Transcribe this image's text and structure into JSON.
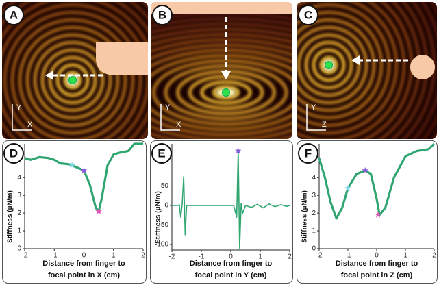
{
  "panels": [
    {
      "label": "A",
      "axes": [
        "Y",
        "X"
      ]
    },
    {
      "label": "B",
      "axes": [
        "Y",
        "X"
      ]
    },
    {
      "label": "C",
      "axes": [
        "Y",
        "Z"
      ]
    }
  ],
  "chart_data": [
    {
      "type": "line",
      "label": "D",
      "ylabel": "Stiffness (μN/m)",
      "xlabel": [
        "Distance from finger to",
        "focal point in X (cm)"
      ],
      "xlim": [
        -2,
        2
      ],
      "ylim": [
        0,
        5.9
      ],
      "xticks": [
        -2,
        -1,
        0,
        1,
        2
      ],
      "yticks": [
        0,
        1,
        2,
        3,
        4
      ],
      "series": [
        {
          "color": "#2fa56f",
          "x": [
            -2,
            -1.8,
            -1.5,
            -1.2,
            -1,
            -0.8,
            -0.5,
            -0.2,
            0,
            0.2,
            0.4,
            0.5,
            0.6,
            0.8,
            1,
            1.2,
            1.5,
            1.7,
            2
          ],
          "values": [
            5.1,
            5.0,
            5.15,
            5.1,
            5.0,
            4.8,
            4.75,
            4.55,
            4.4,
            3.6,
            2.3,
            2.1,
            2.8,
            4.7,
            5.3,
            5.4,
            5.5,
            5.9,
            5.9
          ]
        }
      ],
      "markers": {
        "x": [
          -0.4,
          0,
          0.5
        ],
        "values": [
          4.7,
          4.4,
          2.1
        ],
        "colors": [
          "#7fd6e6",
          "#8a5cd8",
          "#e455b8"
        ]
      }
    },
    {
      "type": "line",
      "label": "E",
      "ylabel": "Stiffness (μN/m)",
      "xlabel": [
        "Distance from finger to",
        "focal point in Y (cm)"
      ],
      "xlim": [
        -2,
        2
      ],
      "ylim": [
        -114,
        158
      ],
      "xticks": [
        -2,
        -1,
        0,
        1,
        2
      ],
      "yticks": [
        -100,
        -50,
        0,
        50
      ],
      "series": [
        {
          "color": "#2fa56f",
          "x": [
            -2,
            -1.8,
            -1.75,
            -1.7,
            -1.65,
            -1.6,
            -1.55,
            -1.5,
            -1.4,
            -1,
            -0.5,
            0,
            0.1,
            0.2,
            0.25,
            0.3,
            0.35,
            0.4,
            0.5,
            0.7,
            0.9,
            1.1,
            1.3,
            1.5,
            1.7,
            1.9,
            2
          ],
          "values": [
            0,
            0,
            2,
            -30,
            5,
            74,
            -75,
            0,
            0,
            0,
            0,
            0,
            0,
            -30,
            140,
            -110,
            5,
            -20,
            0,
            -5,
            3,
            -6,
            4,
            -3,
            2,
            -2,
            0
          ]
        }
      ],
      "markers": {
        "x": [
          0.25
        ],
        "values": [
          140
        ],
        "colors": [
          "#8a5cd8"
        ]
      }
    },
    {
      "type": "line",
      "label": "F",
      "ylabel": "Stiffness (μN/m)",
      "xlabel": [
        "Distance from finger to",
        "focal point in Z (cm)"
      ],
      "xlim": [
        -2,
        2
      ],
      "ylim": [
        0,
        5.9
      ],
      "xticks": [
        -2,
        -1,
        0,
        1,
        2
      ],
      "yticks": [
        0,
        1,
        2,
        3,
        4
      ],
      "series": [
        {
          "color": "#2fa56f",
          "x": [
            -2,
            -1.8,
            -1.6,
            -1.4,
            -1.2,
            -1,
            -0.7,
            -0.4,
            -0.2,
            0,
            0.1,
            0.3,
            0.6,
            1,
            1.4,
            1.8,
            2
          ],
          "values": [
            5.1,
            4.0,
            2.6,
            1.7,
            2.3,
            3.4,
            4.2,
            4.4,
            4.2,
            2.8,
            1.9,
            2.3,
            4.0,
            5.2,
            5.5,
            5.6,
            5.9
          ]
        }
      ],
      "markers": {
        "x": [
          -1,
          -0.4,
          0.05
        ],
        "values": [
          3.4,
          4.4,
          1.9
        ],
        "colors": [
          "#7fd6e6",
          "#8a5cd8",
          "#e455b8"
        ]
      }
    }
  ]
}
